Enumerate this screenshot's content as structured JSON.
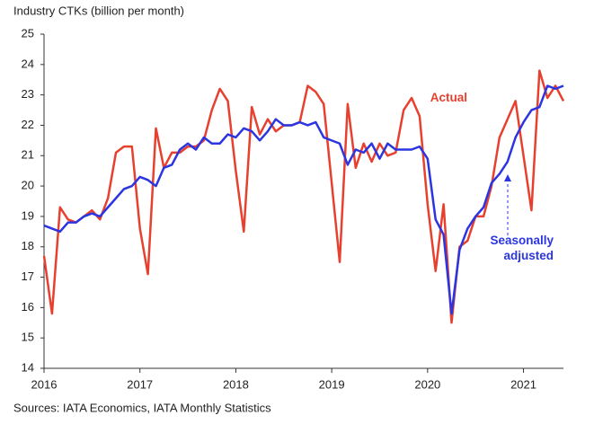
{
  "chart_data": {
    "type": "line",
    "y_label": "Industry CTKs (billion per month)",
    "source": "Sources: IATA Economics, IATA Monthly Statistics",
    "x": [
      2016,
      2016.0833,
      2016.1667,
      2016.25,
      2016.3333,
      2016.4167,
      2016.5,
      2016.5833,
      2016.6667,
      2016.75,
      2016.8333,
      2016.9167,
      2017,
      2017.0833,
      2017.1667,
      2017.25,
      2017.3333,
      2017.4167,
      2017.5,
      2017.5833,
      2017.6667,
      2017.75,
      2017.8333,
      2017.9167,
      2018,
      2018.0833,
      2018.1667,
      2018.25,
      2018.3333,
      2018.4167,
      2018.5,
      2018.5833,
      2018.6667,
      2018.75,
      2018.8333,
      2018.9167,
      2019,
      2019.0833,
      2019.1667,
      2019.25,
      2019.3333,
      2019.4167,
      2019.5,
      2019.5833,
      2019.6667,
      2019.75,
      2019.8333,
      2019.9167,
      2020,
      2020.0833,
      2020.1667,
      2020.25,
      2020.3333,
      2020.4167,
      2020.5,
      2020.5833,
      2020.6667,
      2020.75,
      2020.8333,
      2020.9167,
      2021,
      2021.0833,
      2021.1667,
      2021.25,
      2021.3333,
      2021.4167
    ],
    "series": [
      {
        "name": "Actual",
        "color": "#e8402f",
        "values": [
          17.7,
          15.8,
          19.3,
          18.9,
          18.8,
          19.0,
          19.2,
          18.9,
          19.6,
          21.1,
          21.3,
          21.3,
          18.6,
          17.1,
          21.9,
          20.6,
          21.1,
          21.1,
          21.3,
          21.3,
          21.5,
          22.5,
          23.2,
          22.8,
          20.5,
          18.5,
          22.6,
          21.7,
          22.2,
          21.8,
          22.0,
          22.0,
          22.1,
          23.3,
          23.1,
          22.7,
          20.1,
          17.5,
          22.7,
          20.6,
          21.4,
          20.8,
          21.4,
          21.0,
          21.1,
          22.5,
          22.9,
          22.3,
          19.4,
          17.2,
          19.4,
          15.5,
          18.0,
          18.2,
          19.0,
          19.0,
          20.0,
          21.6,
          22.2,
          22.8,
          21.0,
          19.2,
          23.8,
          22.9,
          23.3,
          22.8
        ]
      },
      {
        "name": "Seasonally adjusted",
        "color": "#2b35e0",
        "values": [
          18.7,
          18.6,
          18.5,
          18.8,
          18.8,
          19.0,
          19.1,
          19.0,
          19.3,
          19.6,
          19.9,
          20.0,
          20.3,
          20.2,
          20.0,
          20.6,
          20.7,
          21.2,
          21.4,
          21.2,
          21.6,
          21.4,
          21.4,
          21.7,
          21.6,
          21.9,
          21.8,
          21.5,
          21.8,
          22.2,
          22.0,
          22.0,
          22.1,
          22.0,
          22.1,
          21.6,
          21.5,
          21.4,
          20.7,
          21.2,
          21.1,
          21.4,
          20.9,
          21.4,
          21.2,
          21.2,
          21.2,
          21.3,
          20.9,
          18.9,
          18.4,
          15.8,
          17.9,
          18.6,
          19.0,
          19.3,
          20.1,
          20.4,
          20.8,
          21.6,
          22.1,
          22.5,
          22.6,
          23.3,
          23.2,
          23.3
        ]
      }
    ],
    "xlim": [
      2016,
      2021.4167
    ],
    "xticks": [
      2016,
      2017,
      2018,
      2019,
      2020,
      2021
    ],
    "ylim": [
      14,
      25
    ],
    "yticks": [
      14,
      15,
      16,
      17,
      18,
      19,
      20,
      21,
      22,
      23,
      24,
      25
    ],
    "grid": false
  }
}
